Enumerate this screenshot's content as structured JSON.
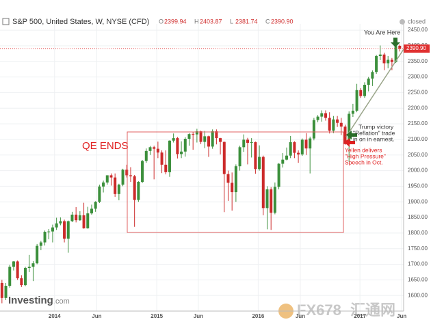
{
  "header": {
    "title": "S&P 500, United States, W, NYSE (CFD)",
    "ohlc": [
      {
        "key": "O",
        "value": "2399.94"
      },
      {
        "key": "H",
        "value": "2403.87"
      },
      {
        "key": "L",
        "value": "2381.74"
      },
      {
        "key": "C",
        "value": "2390.90"
      }
    ],
    "status": "closed"
  },
  "chart_data": {
    "type": "candlestick",
    "x": [
      1,
      3,
      5,
      7,
      9,
      11,
      13,
      15,
      17,
      19,
      21,
      23,
      25,
      27,
      29,
      31,
      33,
      35,
      37,
      39,
      41,
      43,
      45,
      47,
      49,
      51,
      53,
      55,
      57,
      59,
      61,
      63,
      65,
      67,
      69,
      71,
      73,
      75,
      77,
      79,
      81,
      83,
      85,
      87,
      89,
      91,
      93,
      95,
      97,
      99,
      101,
      103,
      105,
      107,
      109,
      111,
      113,
      115,
      117,
      119,
      121,
      123,
      125,
      127,
      129,
      131,
      133,
      135,
      137,
      139,
      141,
      143,
      145,
      147,
      149,
      151,
      153,
      155,
      157,
      159,
      161,
      163,
      165,
      167,
      169,
      171,
      173,
      175,
      177,
      179,
      181,
      183,
      185,
      187,
      189,
      191,
      193,
      195,
      197,
      199,
      201,
      203,
      205
    ],
    "open": [
      1640,
      1592,
      1631,
      1692,
      1709,
      1655,
      1633,
      1688,
      1692,
      1703,
      1759,
      1770,
      1804,
      1805,
      1818,
      1831,
      1838,
      1782,
      1838,
      1859,
      1841,
      1857,
      1815,
      1863,
      1878,
      1900,
      1949,
      1962,
      1985,
      1978,
      1925,
      1955,
      2003,
      1985,
      1982,
      1906,
      1964,
      2031,
      2063,
      2075,
      2070,
      2058,
      2019,
      1995,
      2096,
      2104,
      2053,
      2061,
      2102,
      2117,
      2116,
      2126,
      2092,
      2110,
      2077,
      2126,
      2104,
      2092,
      1989,
      1961,
      1931,
      2014,
      2075,
      2099,
      2089,
      2091,
      2005,
      2044,
      1880,
      1940,
      1865,
      1948,
      2022,
      2035,
      2048,
      2091,
      2057,
      2052,
      2099,
      2071,
      2103,
      2162,
      2173,
      2184,
      2169,
      2128,
      2164,
      2153,
      2141,
      2085,
      2182,
      2192,
      2258,
      2239,
      2275,
      2295,
      2316,
      2367,
      2372,
      2344,
      2355,
      2348,
      2399.94
    ],
    "high": [
      1650,
      1640,
      1698,
      1710,
      1712,
      1665,
      1692,
      1730,
      1710,
      1765,
      1775,
      1808,
      1813,
      1827,
      1849,
      1850,
      1843,
      1840,
      1868,
      1883,
      1870,
      1897,
      1884,
      1891,
      1902,
      1955,
      1968,
      1985,
      1991,
      1991,
      1958,
      2006,
      2019,
      2011,
      1986,
      1966,
      2034,
      2071,
      2079,
      2080,
      2093,
      2065,
      2065,
      2097,
      2119,
      2108,
      2094,
      2107,
      2120,
      2125,
      2134,
      2128,
      2127,
      2112,
      2132,
      2132,
      2105,
      2093,
      2000,
      1994,
      2020,
      2080,
      2116,
      2105,
      2104,
      2093,
      2081,
      2048,
      1950,
      1947,
      1962,
      2024,
      2056,
      2074,
      2111,
      2094,
      2065,
      2103,
      2120,
      2109,
      2169,
      2178,
      2193,
      2193,
      2187,
      2175,
      2175,
      2169,
      2147,
      2190,
      2214,
      2278,
      2264,
      2283,
      2300,
      2321,
      2371,
      2401,
      2378,
      2367,
      2361,
      2400,
      2403.87
    ],
    "low": [
      1575,
      1585,
      1625,
      1680,
      1650,
      1627,
      1630,
      1675,
      1646,
      1700,
      1745,
      1760,
      1780,
      1770,
      1810,
      1825,
      1770,
      1737,
      1835,
      1834,
      1839,
      1814,
      1814,
      1859,
      1868,
      1896,
      1930,
      1955,
      1952,
      1916,
      1905,
      1950,
      1978,
      1964,
      1820,
      1900,
      1960,
      2025,
      2050,
      1972,
      2040,
      1992,
      1988,
      1980,
      2090,
      2039,
      2040,
      2045,
      2080,
      2067,
      2090,
      2085,
      2072,
      2044,
      2070,
      2084,
      2052,
      1867,
      1903,
      1872,
      1900,
      2000,
      2060,
      2020,
      2042,
      1990,
      2000,
      1857,
      1812,
      1810,
      1860,
      1940,
      2010,
      2033,
      2040,
      2040,
      2025,
      2047,
      2050,
      1991,
      2097,
      2155,
      2157,
      2160,
      2119,
      2120,
      2140,
      2114,
      2083,
      2028,
      2172,
      2187,
      2233,
      2233,
      2254,
      2271,
      2310,
      2354,
      2322,
      2328,
      2322,
      2345,
      2381.74
    ],
    "close": [
      1592,
      1631,
      1692,
      1709,
      1655,
      1633,
      1688,
      1692,
      1703,
      1759,
      1770,
      1804,
      1805,
      1818,
      1831,
      1838,
      1782,
      1838,
      1859,
      1841,
      1857,
      1815,
      1863,
      1878,
      1900,
      1949,
      1962,
      1985,
      1978,
      1925,
      1955,
      2003,
      1985,
      1982,
      1906,
      1964,
      2031,
      2063,
      2075,
      2070,
      2058,
      2019,
      1995,
      2096,
      2104,
      2053,
      2061,
      2102,
      2117,
      2116,
      2126,
      2092,
      2110,
      2077,
      2126,
      2104,
      2092,
      1989,
      1961,
      1931,
      2014,
      2075,
      2099,
      2089,
      2091,
      2005,
      2044,
      1880,
      1940,
      1865,
      1948,
      2022,
      2035,
      2048,
      2091,
      2057,
      2052,
      2099,
      2071,
      2103,
      2162,
      2173,
      2184,
      2169,
      2128,
      2164,
      2153,
      2141,
      2085,
      2182,
      2192,
      2258,
      2239,
      2275,
      2295,
      2316,
      2367,
      2372,
      2344,
      2355,
      2348,
      2399,
      2390.9
    ],
    "up_color": "#3b8f3b",
    "down_color": "#cc2a2a",
    "xlim": [
      0,
      207
    ],
    "xticks": [
      {
        "value": 28,
        "label": "2014"
      },
      {
        "value": 49.6,
        "label": "Jun"
      },
      {
        "value": 80.4,
        "label": "2015"
      },
      {
        "value": 101.7,
        "label": "Jun"
      },
      {
        "value": 132.4,
        "label": "2016"
      },
      {
        "value": 154,
        "label": "Jun"
      },
      {
        "value": 184.6,
        "label": "2017"
      },
      {
        "value": 206,
        "label": "Jun"
      }
    ],
    "ylim": [
      1550,
      2470
    ],
    "yticks": [
      {
        "value": 1600,
        "label": "1600.00"
      },
      {
        "value": 1650,
        "label": "1650.00"
      },
      {
        "value": 1700,
        "label": "1700.00"
      },
      {
        "value": 1750,
        "label": "1750.00"
      },
      {
        "value": 1800,
        "label": "1800.00"
      },
      {
        "value": 1850,
        "label": "1850.00"
      },
      {
        "value": 1900,
        "label": "1900.00"
      },
      {
        "value": 1950,
        "label": "1950.00"
      },
      {
        "value": 2000,
        "label": "2000.00"
      },
      {
        "value": 2050,
        "label": "2050.00"
      },
      {
        "value": 2100,
        "label": "2100.00"
      },
      {
        "value": 2150,
        "label": "2150.00"
      },
      {
        "value": 2200,
        "label": "2200.00"
      },
      {
        "value": 2250,
        "label": "2250.00"
      },
      {
        "value": 2300,
        "label": "2300.00"
      },
      {
        "value": 2350,
        "label": "2350.00"
      },
      {
        "value": 2400,
        "label": "2400.00"
      },
      {
        "value": 2450,
        "label": "2450.00"
      }
    ],
    "grid": true,
    "last_price": {
      "value": 2390.9,
      "label": "2390.90"
    },
    "annotations": {
      "qe": "QE ENDS",
      "here": "You Are Here",
      "trump": [
        "Trump victory",
        "\"Reflation\" trade",
        "in on in earnest."
      ],
      "yellen": [
        "Yellen delivers",
        "\"High Pressure\"",
        "Speech in Oct."
      ]
    }
  },
  "branding": {
    "logo": "Investing",
    "logo_suffix": ".com",
    "watermark": "FX678",
    "watermark_cn": "汇通网"
  }
}
